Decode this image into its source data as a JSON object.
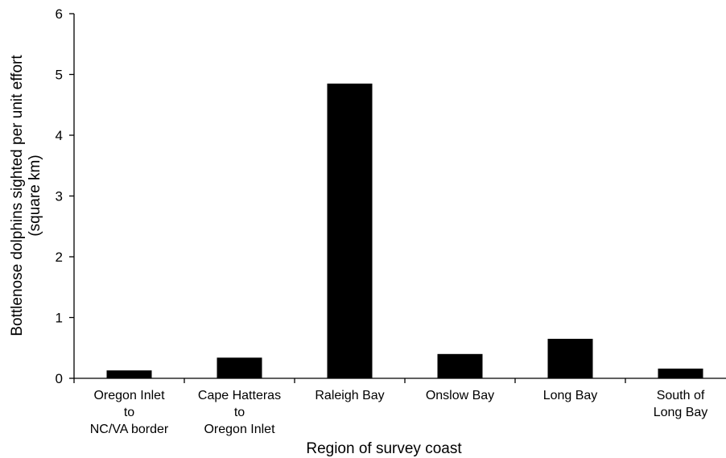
{
  "chart_data": {
    "type": "bar",
    "title": "",
    "xlabel": "Region of survey coast",
    "ylabel_lines": [
      "Bottlenose dolphins sighted per unit effort",
      "(square km)"
    ],
    "ylim": [
      0,
      6
    ],
    "yticks": [
      0,
      1,
      2,
      3,
      4,
      5,
      6
    ],
    "grid": false,
    "legend": "none",
    "bar_color": "#000000",
    "categories": [
      {
        "lines": [
          "Oregon Inlet",
          "to",
          "NC/VA border"
        ]
      },
      {
        "lines": [
          "Cape Hatteras",
          "to",
          "Oregon Inlet"
        ]
      },
      {
        "lines": [
          "Raleigh Bay"
        ]
      },
      {
        "lines": [
          "Onslow Bay"
        ]
      },
      {
        "lines": [
          "Long Bay"
        ]
      },
      {
        "lines": [
          "South of",
          "Long Bay"
        ]
      }
    ],
    "values": [
      0.13,
      0.34,
      4.85,
      0.4,
      0.65,
      0.16
    ]
  }
}
